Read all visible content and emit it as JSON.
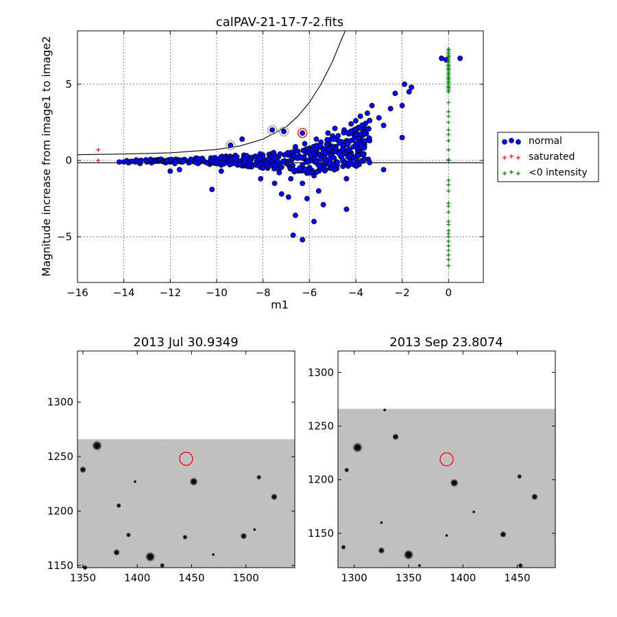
{
  "chart_data": [
    {
      "type": "scatter",
      "title": "calPAV-21-17-7-2.fits",
      "xlabel": "m1",
      "ylabel": "Magnitude increase from image1 to image2",
      "xlim": [
        -16,
        1.5
      ],
      "ylim": [
        -8,
        8.5
      ],
      "xticks": [
        -16,
        -14,
        -12,
        -10,
        -8,
        -6,
        -4,
        -2,
        0
      ],
      "xtick_labels": [
        "−16",
        "−14",
        "−12",
        "−10",
        "−8",
        "−6",
        "−4",
        "−2",
        "0"
      ],
      "yticks": [
        -5,
        0,
        5
      ],
      "ytick_labels": [
        "−5",
        "0",
        "5"
      ],
      "grid": true,
      "legend_position": "outside-right",
      "legend": [
        {
          "label": "normal",
          "marker": "circle",
          "color": "#0000ff"
        },
        {
          "label": "saturated",
          "marker": "plus",
          "color": "#ff0000"
        },
        {
          "label": "<0 intensity",
          "marker": "plus",
          "color": "#008000"
        }
      ],
      "threshold_curve": {
        "lower_line_y": -0.15,
        "upper_curve": [
          [
            -16,
            0.38
          ],
          [
            -14,
            0.42
          ],
          [
            -12,
            0.5
          ],
          [
            -10,
            0.72
          ],
          [
            -9,
            0.95
          ],
          [
            -8,
            1.4
          ],
          [
            -7,
            2.2
          ],
          [
            -6.5,
            2.9
          ],
          [
            -6,
            3.8
          ],
          [
            -5.5,
            5.0
          ],
          [
            -5,
            6.5
          ],
          [
            -4.6,
            8.0
          ],
          [
            -4.45,
            8.5
          ]
        ]
      },
      "series": [
        {
          "name": "normal",
          "points": [
            [
              -14.2,
              -0.1
            ],
            [
              -14.0,
              -0.1
            ],
            [
              -13.8,
              -0.15
            ],
            [
              -13.5,
              -0.1
            ],
            [
              -13.3,
              -0.2
            ],
            [
              -13.0,
              -0.1
            ],
            [
              -12.8,
              -0.15
            ],
            [
              -12.5,
              -0.05
            ],
            [
              -12.2,
              -0.15
            ],
            [
              -12.0,
              -0.1
            ],
            [
              -11.8,
              -0.2
            ],
            [
              -11.5,
              -0.1
            ],
            [
              -11.2,
              -0.15
            ],
            [
              -11.0,
              -0.05
            ],
            [
              -10.8,
              -0.2
            ],
            [
              -10.5,
              -0.1
            ],
            [
              -10.3,
              -0.25
            ],
            [
              -10.0,
              -0.1
            ],
            [
              -9.8,
              -0.3
            ],
            [
              -9.5,
              0.0
            ],
            [
              -9.3,
              -0.2
            ],
            [
              -9.0,
              -0.1
            ],
            [
              -8.8,
              -0.35
            ],
            [
              -8.5,
              0.1
            ],
            [
              -8.3,
              -0.3
            ],
            [
              -8.0,
              0.2
            ],
            [
              -7.8,
              -0.5
            ],
            [
              -7.5,
              0.3
            ],
            [
              -7.3,
              -0.8
            ],
            [
              -7.0,
              0.4
            ],
            [
              -6.8,
              -1.2
            ],
            [
              -6.5,
              0.6
            ],
            [
              -6.3,
              -1.5
            ],
            [
              -6.0,
              0.8
            ],
            [
              -5.8,
              -1.0
            ],
            [
              -5.5,
              1.2
            ],
            [
              -5.3,
              -0.6
            ],
            [
              -5.0,
              1.6
            ],
            [
              -4.8,
              -0.3
            ],
            [
              -4.5,
              2.0
            ],
            [
              -4.2,
              2.4
            ],
            [
              -4.0,
              2.6
            ],
            [
              -3.8,
              2.9
            ],
            [
              -3.5,
              3.1
            ],
            [
              -3.3,
              3.6
            ],
            [
              -3.0,
              2.8
            ],
            [
              -2.8,
              2.3
            ],
            [
              -2.5,
              3.4
            ],
            [
              -2.3,
              4.4
            ],
            [
              -2.0,
              3.6
            ],
            [
              -1.9,
              5.0
            ],
            [
              -1.7,
              4.5
            ],
            [
              -1.6,
              4.8
            ],
            [
              -12.0,
              -0.7
            ],
            [
              -11.6,
              -0.6
            ],
            [
              -10.2,
              -1.9
            ],
            [
              -9.8,
              -0.7
            ],
            [
              -7.6,
              2.0
            ],
            [
              -7.1,
              1.9
            ],
            [
              -9.4,
              1.0
            ],
            [
              -8.9,
              1.4
            ],
            [
              -6.3,
              1.8
            ],
            [
              -6.7,
              -4.9
            ],
            [
              -6.3,
              -5.2
            ],
            [
              -6.6,
              -3.6
            ],
            [
              -5.8,
              -4.0
            ],
            [
              -5.4,
              -2.9
            ],
            [
              -4.4,
              -3.2
            ],
            [
              -4.2,
              0.5
            ],
            [
              -4.4,
              -1.2
            ],
            [
              -2.8,
              -0.6
            ],
            [
              -2.0,
              1.5
            ],
            [
              -0.3,
              6.7
            ],
            [
              0.5,
              6.7
            ],
            [
              -0.1,
              6.6
            ],
            [
              -7.2,
              -2.2
            ],
            [
              -6.9,
              -2.4
            ],
            [
              -6.1,
              -2.5
            ],
            [
              -5.6,
              -2.0
            ],
            [
              -7.5,
              -1.5
            ],
            [
              -8.1,
              -1.2
            ],
            [
              -5.2,
              1.8
            ],
            [
              -4.9,
              2.1
            ],
            [
              -5.7,
              1.4
            ],
            [
              -6.2,
              1.1
            ],
            [
              -6.6,
              0.9
            ],
            [
              -7.0,
              -0.2
            ],
            [
              -6.0,
              0.0
            ],
            [
              -5.5,
              0.3
            ],
            [
              -8.6,
              -0.4
            ],
            [
              -9.1,
              -0.3
            ]
          ]
        },
        {
          "name": "saturated",
          "points": [
            [
              -15.1,
              0.7
            ],
            [
              -15.1,
              0.0
            ]
          ]
        },
        {
          "name": "<0 intensity",
          "points": [
            [
              0,
              7.3
            ],
            [
              0,
              7.0
            ],
            [
              0,
              6.8
            ],
            [
              0,
              6.5
            ],
            [
              0,
              6.2
            ],
            [
              0,
              6.0
            ],
            [
              0,
              5.7
            ],
            [
              0,
              5.4
            ],
            [
              0,
              5.1
            ],
            [
              0,
              4.8
            ],
            [
              0,
              4.5
            ],
            [
              0,
              3.8
            ],
            [
              0,
              3.2
            ],
            [
              0,
              2.9
            ],
            [
              0,
              2.5
            ],
            [
              0,
              2.0
            ],
            [
              0,
              1.7
            ],
            [
              0,
              1.3
            ],
            [
              0,
              0.7
            ],
            [
              0,
              0.05
            ],
            [
              0,
              0.0
            ],
            [
              0,
              -1.3
            ],
            [
              0,
              -1.6
            ],
            [
              0,
              -2.0
            ],
            [
              0,
              -2.8
            ],
            [
              0,
              -3.0
            ],
            [
              0,
              -3.4
            ],
            [
              0,
              -4.0
            ],
            [
              0,
              -4.2
            ],
            [
              0,
              -4.6
            ],
            [
              0,
              -4.8
            ],
            [
              0,
              -5.0
            ],
            [
              0,
              -5.3
            ],
            [
              0,
              -5.6
            ],
            [
              0,
              -5.9
            ],
            [
              0,
              -6.2
            ],
            [
              0,
              -6.5
            ],
            [
              0,
              -6.9
            ]
          ]
        }
      ],
      "highlighted_points": {
        "grey_ring": [
          [
            -9.4,
            1.0
          ],
          [
            -7.6,
            2.0
          ],
          [
            -7.1,
            1.9
          ]
        ],
        "red_ring": [
          [
            -6.3,
            1.8
          ]
        ]
      }
    },
    {
      "type": "heatmap",
      "title": "2013 Jul 30.9349",
      "xlim": [
        1345,
        1545
      ],
      "ylim": [
        1148,
        1347
      ],
      "xticks": [
        1350,
        1400,
        1450,
        1500
      ],
      "yticks": [
        1150,
        1200,
        1250,
        1300
      ],
      "image_top": 1266,
      "circle": {
        "x": 1445,
        "y": 1248,
        "color": "#ff0000"
      },
      "stars": [
        [
          1363,
          1260,
          6
        ],
        [
          1350,
          1238,
          4
        ],
        [
          1452,
          1227,
          5
        ],
        [
          1383,
          1205,
          3
        ],
        [
          1392,
          1178,
          3
        ],
        [
          1498,
          1177,
          4
        ],
        [
          1526,
          1213,
          4
        ],
        [
          1512,
          1231,
          3
        ],
        [
          1381,
          1162,
          4
        ],
        [
          1412,
          1158,
          6
        ],
        [
          1444,
          1176,
          3
        ],
        [
          1352,
          1148,
          3
        ],
        [
          1423,
          1150,
          3
        ],
        [
          1470,
          1160,
          2
        ],
        [
          1508,
          1183,
          2
        ],
        [
          1398,
          1227,
          2
        ]
      ]
    },
    {
      "type": "heatmap",
      "title": "2013 Sep 23.8074",
      "xlim": [
        1285,
        1485
      ],
      "ylim": [
        1118,
        1320
      ],
      "xticks": [
        1300,
        1350,
        1400,
        1450
      ],
      "yticks": [
        1150,
        1200,
        1250,
        1300
      ],
      "image_top": 1266,
      "circle": {
        "x": 1385,
        "y": 1219,
        "color": "#ff0000"
      },
      "stars": [
        [
          1303,
          1230,
          6
        ],
        [
          1338,
          1240,
          4
        ],
        [
          1293,
          1209,
          3
        ],
        [
          1392,
          1197,
          5
        ],
        [
          1325,
          1134,
          4
        ],
        [
          1350,
          1130,
          6
        ],
        [
          1437,
          1149,
          4
        ],
        [
          1466,
          1184,
          4
        ],
        [
          1452,
          1203,
          3
        ],
        [
          1325,
          1160,
          2
        ],
        [
          1385,
          1148,
          2
        ],
        [
          1328,
          1265,
          2
        ],
        [
          1290,
          1137,
          3
        ],
        [
          1453,
          1120,
          3
        ],
        [
          1360,
          1120,
          2
        ],
        [
          1410,
          1170,
          2
        ]
      ]
    }
  ]
}
